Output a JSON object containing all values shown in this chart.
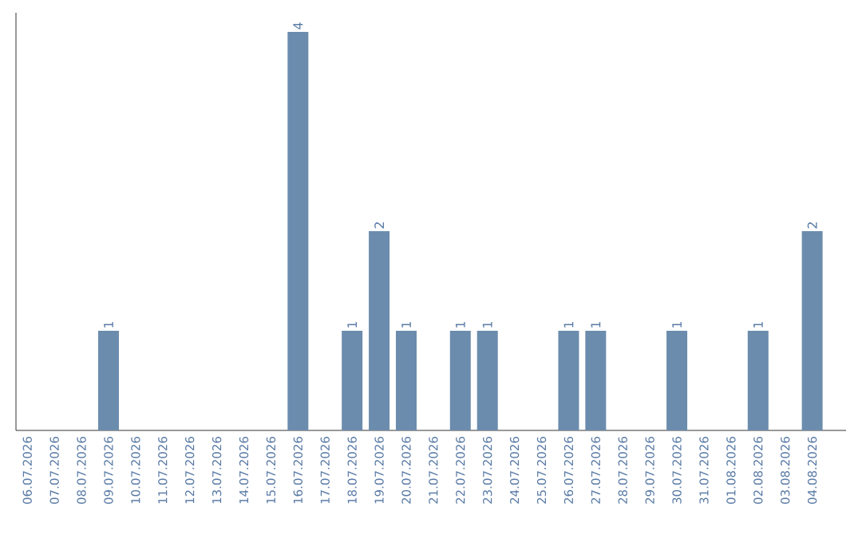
{
  "chart_data": {
    "type": "bar",
    "categories": [
      "06.07.2026",
      "07.07.2026",
      "08.07.2026",
      "09.07.2026",
      "10.07.2026",
      "11.07.2026",
      "12.07.2026",
      "13.07.2026",
      "14.07.2026",
      "15.07.2026",
      "16.07.2026",
      "17.07.2026",
      "18.07.2026",
      "19.07.2026",
      "20.07.2026",
      "21.07.2026",
      "22.07.2026",
      "23.07.2026",
      "24.07.2026",
      "25.07.2026",
      "26.07.2026",
      "27.07.2026",
      "28.07.2026",
      "29.07.2026",
      "30.07.2026",
      "31.07.2026",
      "01.08.2026",
      "02.08.2026",
      "03.08.2026",
      "04.08.2026"
    ],
    "values": [
      0,
      0,
      0,
      1,
      0,
      0,
      0,
      0,
      0,
      0,
      4,
      0,
      1,
      2,
      1,
      0,
      1,
      1,
      0,
      0,
      1,
      1,
      0,
      0,
      1,
      0,
      0,
      1,
      0,
      2
    ],
    "value_labels": [
      null,
      null,
      null,
      "1",
      null,
      null,
      null,
      null,
      null,
      null,
      "4",
      null,
      "1",
      "2",
      "1",
      null,
      "1",
      "1",
      null,
      null,
      "1",
      "1",
      null,
      null,
      "1",
      null,
      null,
      "1",
      null,
      "2"
    ],
    "color": "#6b8cad"
  }
}
